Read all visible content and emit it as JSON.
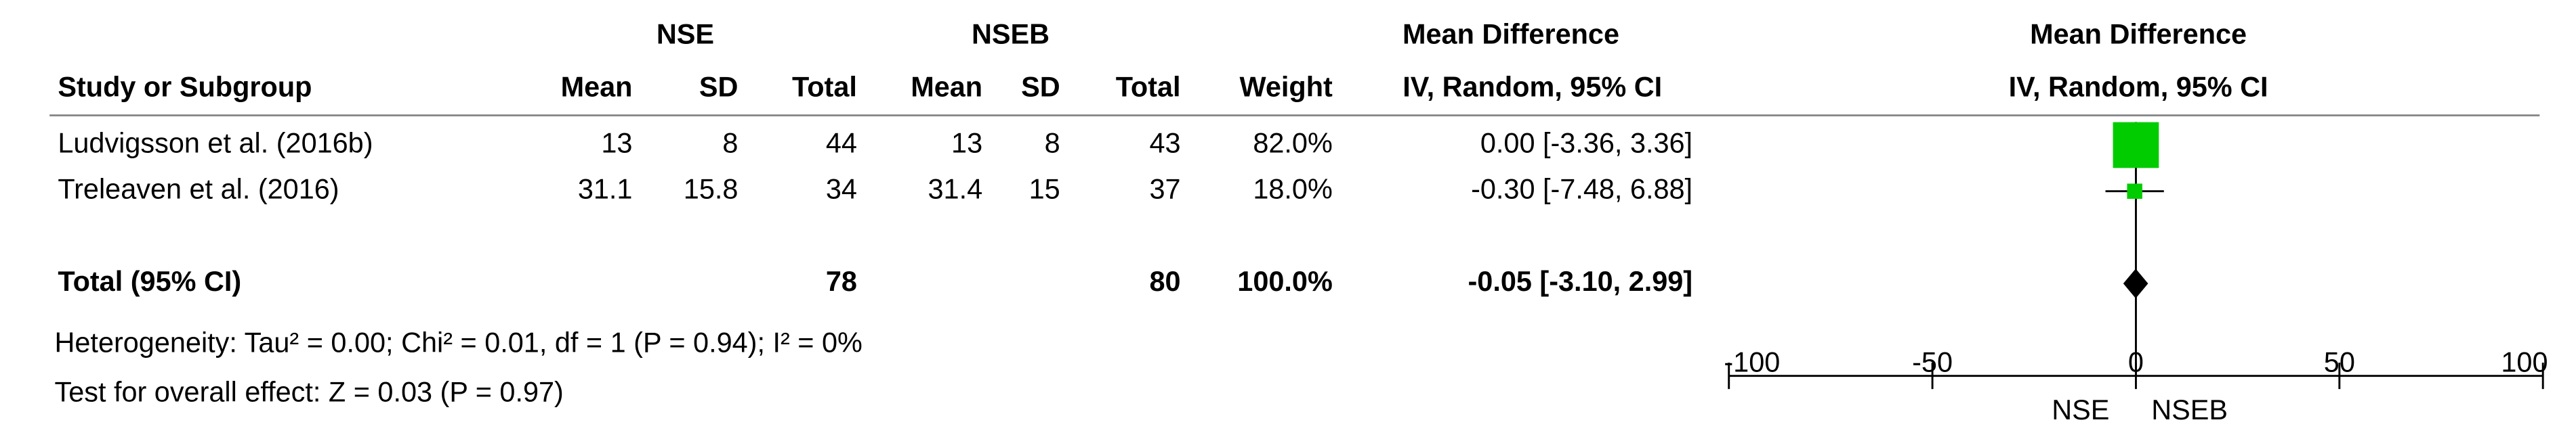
{
  "chart_data": {
    "type": "forest",
    "headers": {
      "group_1": "NSE",
      "group_2": "NSEB",
      "effect_title": "Mean Difference",
      "effect_method": "IV, Random, 95% CI",
      "study": "Study or Subgroup",
      "columns": [
        "Mean",
        "SD",
        "Total",
        "Mean",
        "SD",
        "Total",
        "Weight"
      ]
    },
    "studies": [
      {
        "name": "Ludvigsson et al. (2016b)",
        "nse_mean": 13,
        "nse_sd": 8,
        "nse_total": 44,
        "nseb_mean": 13,
        "nseb_sd": 8,
        "nseb_total": 43,
        "weight": {
          "value": 82.0,
          "label": "82.0%"
        },
        "md": 0.0,
        "lo": -3.36,
        "hi": 3.36,
        "ci_label": "0.00 [-3.36, 3.36]"
      },
      {
        "name": "Treleaven et al. (2016)",
        "nse_mean": 31.1,
        "nse_sd": 15.8,
        "nse_total": 34,
        "nseb_mean": 31.4,
        "nseb_sd": 15,
        "nseb_total": 37,
        "weight": {
          "value": 18.0,
          "label": "18.0%"
        },
        "md": -0.3,
        "lo": -7.48,
        "hi": 6.88,
        "ci_label": "-0.30 [-7.48, 6.88]"
      }
    ],
    "total": {
      "name": "Total (95% CI)",
      "nse_total": 78,
      "nseb_total": 80,
      "weight": {
        "value": 100.0,
        "label": "100.0%"
      },
      "md": -0.05,
      "lo": -3.1,
      "hi": 2.99,
      "ci_label": "-0.05 [-3.10, 2.99]"
    },
    "heterogeneity": "Heterogeneity: Tau² = 0.00; Chi² = 0.01, df = 1 (P = 0.94); I² = 0%",
    "overall_effect": "Test for overall effect: Z = 0.03 (P = 0.97)",
    "plot": {
      "title": "Mean Difference",
      "subtitle": "IV, Random, 95% CI",
      "xlim": [
        -100,
        100
      ],
      "xticks": [
        -100,
        -50,
        0,
        50,
        100
      ],
      "left_label": "NSE",
      "right_label": "NSEB",
      "square_color": "#00cc00"
    }
  }
}
